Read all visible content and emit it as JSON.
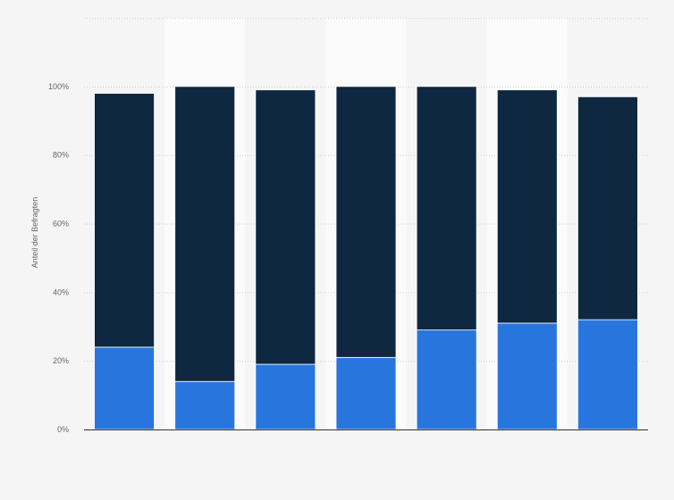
{
  "chart_data": {
    "type": "bar",
    "stacked": true,
    "categories": [
      "",
      "",
      "",
      "",
      "",
      "",
      ""
    ],
    "series": [
      {
        "color": "#2876dd",
        "values": [
          24,
          14,
          19,
          21,
          29,
          31,
          32
        ]
      },
      {
        "color": "#0f2841",
        "values": [
          74,
          86,
          80,
          79,
          71,
          68,
          65
        ]
      }
    ],
    "ylabel": "Anteil der Befragten",
    "ylim": [
      0,
      120
    ],
    "yticks": [
      {
        "value": 0,
        "label": "0%"
      },
      {
        "value": 20,
        "label": "20%"
      },
      {
        "value": 40,
        "label": "40%"
      },
      {
        "value": 60,
        "label": "60%"
      },
      {
        "value": 80,
        "label": "80%"
      },
      {
        "value": 100,
        "label": "100%"
      }
    ],
    "grid": true,
    "background_color": "#f5f5f5",
    "band_color": "#fbfbfb"
  }
}
